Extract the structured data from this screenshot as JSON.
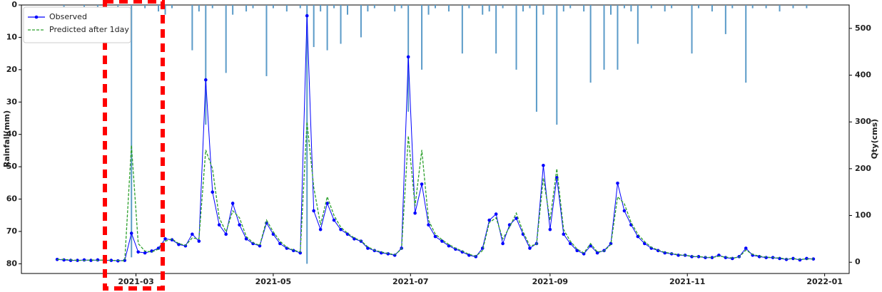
{
  "chart_data": {
    "type": "combo",
    "ylabel": "Rainfall(mm)",
    "y2label": "Qty(cms)",
    "ylim": [
      83,
      0
    ],
    "yticks": [
      0,
      10,
      20,
      30,
      40,
      50,
      60,
      70,
      80
    ],
    "y2lim": [
      -24,
      550
    ],
    "y2ticks": [
      0,
      100,
      200,
      300,
      400,
      500
    ],
    "xlim": [
      -5.3,
      117.3
    ],
    "xticks": [
      {
        "value": 11.67,
        "label": "2021-03"
      },
      {
        "value": 32,
        "label": "2021-05"
      },
      {
        "value": 52.33,
        "label": "2021-07"
      },
      {
        "value": 73,
        "label": "2021-09"
      },
      {
        "value": 93.33,
        "label": "2021-11"
      },
      {
        "value": 113.67,
        "label": "2022-01"
      }
    ],
    "legend": "upper left",
    "series": [
      {
        "type": "bar",
        "color": "#5b9bc8",
        "values": [
          0,
          1,
          0,
          0,
          2,
          0,
          1,
          0,
          0,
          1,
          0,
          78,
          0,
          1,
          0,
          2,
          3,
          1,
          0,
          0,
          14,
          2,
          37,
          1,
          0,
          21,
          3,
          0,
          2,
          1,
          0,
          22,
          1,
          0,
          2,
          0,
          1,
          80,
          13,
          2,
          14,
          1,
          12,
          3,
          0,
          10,
          2,
          1,
          0,
          0,
          2,
          1,
          33,
          0,
          20,
          3,
          1,
          0,
          2,
          0,
          15,
          1,
          0,
          3,
          2,
          15,
          1,
          0,
          20,
          2,
          1,
          33,
          3,
          0,
          37,
          2,
          1,
          0,
          2,
          24,
          0,
          20,
          3,
          20,
          1,
          2,
          12,
          0,
          1,
          0,
          2,
          1,
          0,
          0,
          15,
          1,
          0,
          2,
          0,
          9,
          1,
          0,
          24,
          1,
          0,
          1,
          0,
          2,
          0,
          1,
          0,
          1,
          0
        ]
      },
      {
        "type": "line",
        "name": "Observed",
        "color": "#0000ff",
        "axis": "y2",
        "marker": true,
        "values": [
          6,
          5,
          4,
          4,
          5,
          4,
          5,
          4,
          4,
          3,
          4,
          62,
          22,
          20,
          24,
          30,
          50,
          48,
          38,
          35,
          60,
          45,
          390,
          150,
          80,
          60,
          126,
          80,
          50,
          40,
          35,
          84,
          60,
          40,
          30,
          25,
          20,
          527,
          110,
          70,
          126,
          90,
          70,
          60,
          50,
          45,
          30,
          25,
          20,
          18,
          15,
          30,
          439,
          105,
          167,
          80,
          55,
          45,
          35,
          28,
          22,
          15,
          12,
          30,
          90,
          103,
          40,
          80,
          94,
          60,
          30,
          40,
          207,
          70,
          181,
          60,
          40,
          25,
          18,
          35,
          20,
          25,
          40,
          169,
          110,
          80,
          55,
          40,
          30,
          25,
          20,
          18,
          15,
          15,
          12,
          12,
          10,
          10,
          15,
          10,
          8,
          12,
          30,
          15,
          12,
          10,
          10,
          8,
          6,
          8,
          5,
          8,
          7
        ]
      },
      {
        "type": "line",
        "name": "Predicted after 1day",
        "color": "#2ca02c",
        "axis": "y2",
        "dashed": true,
        "values": [
          6,
          6,
          5,
          4,
          4,
          5,
          4,
          5,
          4,
          4,
          3,
          250,
          40,
          24,
          22,
          28,
          45,
          50,
          40,
          36,
          52,
          50,
          240,
          200,
          95,
          65,
          110,
          95,
          55,
          42,
          36,
          90,
          65,
          45,
          32,
          26,
          22,
          300,
          160,
          80,
          140,
          100,
          75,
          62,
          52,
          46,
          33,
          26,
          22,
          19,
          16,
          28,
          270,
          120,
          240,
          90,
          60,
          48,
          38,
          30,
          24,
          17,
          13,
          25,
          85,
          95,
          50,
          75,
          105,
          65,
          35,
          38,
          180,
          90,
          200,
          70,
          45,
          28,
          20,
          40,
          22,
          24,
          38,
          140,
          125,
          85,
          60,
          44,
          32,
          26,
          21,
          19,
          16,
          15,
          13,
          12,
          11,
          10,
          13,
          11,
          9,
          11,
          26,
          17,
          13,
          11,
          10,
          9,
          7,
          8,
          6,
          7,
          7
        ]
      }
    ]
  }
}
